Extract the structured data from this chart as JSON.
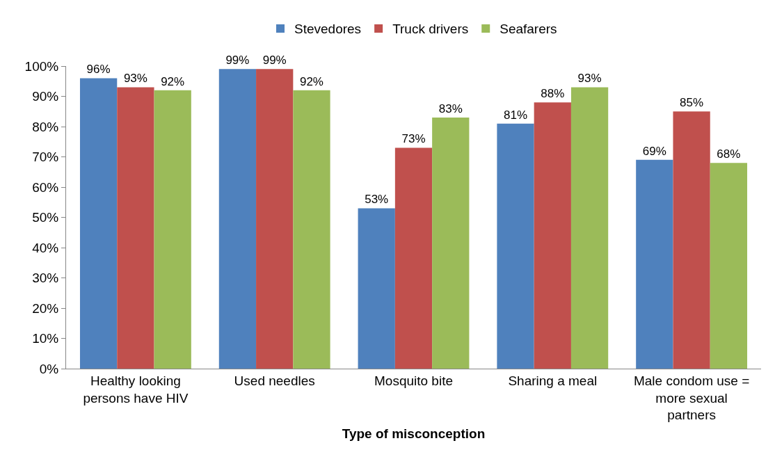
{
  "chart_data": {
    "type": "bar",
    "xlabel": "Type of misconception",
    "categories": [
      "Healthy looking persons have HIV",
      "Used needles",
      "Mosquito bite",
      "Sharing a meal",
      "Male condom use = more sexual partners"
    ],
    "series": [
      {
        "name": "Stevedores",
        "color": "#4f81bd",
        "values": [
          96,
          99,
          53,
          81,
          69
        ],
        "value_labels": [
          "96%",
          "99%",
          "53%",
          "81%",
          "69%"
        ]
      },
      {
        "name": "Truck drivers",
        "color": "#c0504d",
        "values": [
          93,
          99,
          73,
          88,
          85
        ],
        "value_labels": [
          "93%",
          "99%",
          "73%",
          "88%",
          "85%"
        ]
      },
      {
        "name": "Seafarers",
        "color": "#9bbb59",
        "values": [
          92,
          92,
          83,
          93,
          68
        ],
        "value_labels": [
          "92%",
          "92%",
          "83%",
          "93%",
          "68%"
        ]
      }
    ],
    "ylim": [
      0,
      100
    ],
    "yticks": [
      {
        "value": 0,
        "label": "0%"
      },
      {
        "value": 10,
        "label": "10%"
      },
      {
        "value": 20,
        "label": "20%"
      },
      {
        "value": 30,
        "label": "30%"
      },
      {
        "value": 40,
        "label": "40%"
      },
      {
        "value": 50,
        "label": "50%"
      },
      {
        "value": 60,
        "label": "60%"
      },
      {
        "value": 70,
        "label": "70%"
      },
      {
        "value": 80,
        "label": "80%"
      },
      {
        "value": 90,
        "label": "90%"
      },
      {
        "value": 100,
        "label": "100%"
      }
    ],
    "grid": false,
    "legend": "top"
  }
}
